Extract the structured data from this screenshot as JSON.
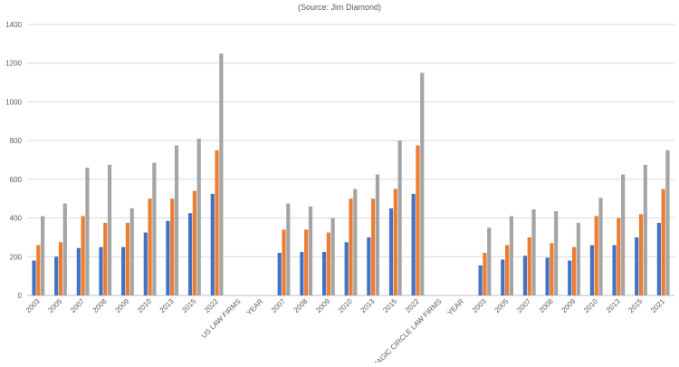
{
  "chart_data": {
    "type": "bar",
    "subtitle": "(Source: Jim Diamond)",
    "ylim": [
      0,
      1400
    ],
    "yticks": [
      0,
      200,
      400,
      600,
      800,
      1000,
      1200,
      1400
    ],
    "grid": true,
    "legend": "none",
    "colors": [
      "#4472C4",
      "#ED7D31",
      "#A5A5A5"
    ],
    "categories": [
      "2003",
      "2005",
      "2007",
      "2008",
      "2009",
      "2010",
      "2013",
      "2015",
      "2022",
      "US LAW FIRMS",
      "YEAR",
      "2007",
      "2008",
      "2009",
      "2010",
      "2013",
      "2015",
      "2022",
      "MAGIC CIRCLE LAW FIRMS",
      "YEAR",
      "2003",
      "2005",
      "2007",
      "2008",
      "2009",
      "2010",
      "2013",
      "2015",
      "2021"
    ],
    "series": [
      {
        "values": [
          180,
          200,
          245,
          250,
          250,
          325,
          385,
          425,
          525,
          null,
          null,
          220,
          225,
          225,
          275,
          300,
          450,
          525,
          null,
          null,
          155,
          185,
          205,
          195,
          180,
          260,
          260,
          300,
          375
        ]
      },
      {
        "values": [
          260,
          275,
          410,
          375,
          375,
          500,
          500,
          540,
          750,
          null,
          null,
          340,
          340,
          325,
          500,
          500,
          550,
          775,
          null,
          null,
          220,
          260,
          300,
          270,
          250,
          410,
          400,
          420,
          550
        ]
      },
      {
        "values": [
          410,
          475,
          660,
          675,
          450,
          685,
          775,
          810,
          1250,
          null,
          null,
          475,
          460,
          400,
          550,
          625,
          800,
          1150,
          null,
          null,
          350,
          410,
          445,
          435,
          375,
          505,
          625,
          675,
          750
        ]
      }
    ]
  }
}
